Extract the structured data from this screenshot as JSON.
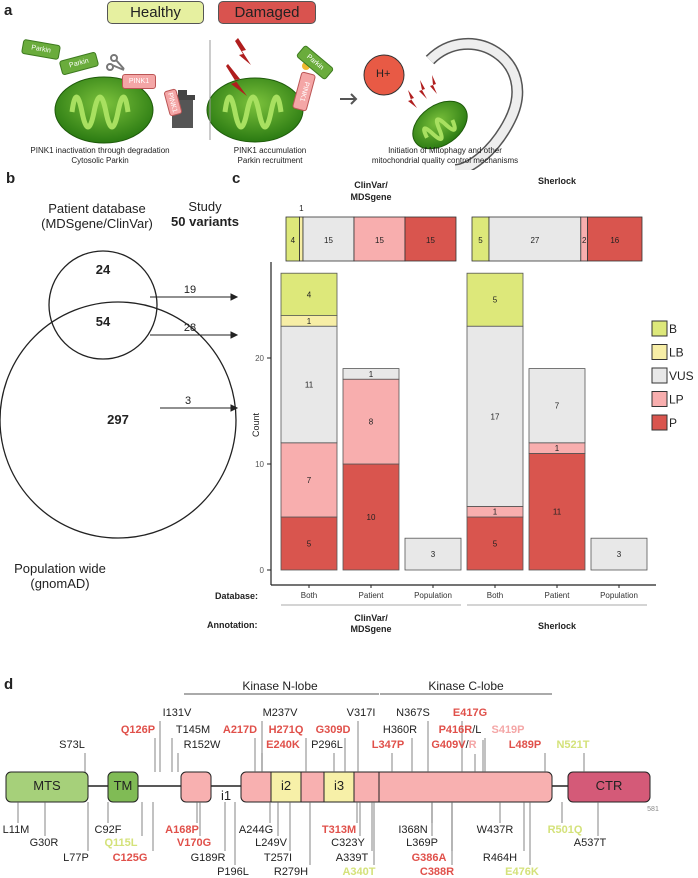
{
  "panel_labels": {
    "a": "a",
    "b": "b",
    "c": "c",
    "d": "d"
  },
  "panel_a": {
    "healthy_label": "Healthy",
    "damaged_label": "Damaged",
    "parkin": "Parkin",
    "pink1": "PINK1",
    "h_plus": "H+",
    "caption_left": [
      "PINK1 inactivation through degradation",
      "Cytosolic Parkin"
    ],
    "caption_mid": [
      "PINK1 accumulation",
      "Parkin recruitment"
    ],
    "caption_right": [
      "Initiation of Mitophagy and other",
      "mitochondrial quality control mechanisms"
    ],
    "colors": {
      "healthy": "#e6f0a0",
      "damaged": "#d9534f",
      "mito": "#3f9a1e",
      "parkin": "#6aac3c",
      "pink1": "#f4a6a6"
    }
  },
  "panel_b": {
    "patient_db": [
      "Patient database",
      "(MDSgene/ClinVar)"
    ],
    "population": [
      "Population wide",
      "(gnomAD)"
    ],
    "study": "Study",
    "study_count": "50 variants",
    "patient_only": "24",
    "both": "54",
    "population_only": "297",
    "arrows": [
      "19",
      "28",
      "3"
    ]
  },
  "chart_data": {
    "type": "bar",
    "stacked": true,
    "ylabel": "Count",
    "yticks": [
      "0",
      "10",
      "20"
    ],
    "ylim": [
      0,
      28
    ],
    "legend": {
      "position": "right",
      "entries": [
        "B",
        "LB",
        "VUS",
        "LP",
        "P"
      ]
    },
    "colors": {
      "B": "#dde87a",
      "LB": "#f7eea6",
      "VUS": "#e8e8e8",
      "LP": "#f8aeae",
      "P": "#d9554e"
    },
    "row_labels": {
      "database": "Database:",
      "annotation": "Annotation:"
    },
    "groups": [
      {
        "annotation": "ClinVar/ MDSgene",
        "annotation_lines": [
          "ClinVar/",
          "MDSgene"
        ],
        "summary": {
          "B": 4,
          "LB": 1,
          "VUS": 15,
          "LP": 15,
          "P": 15
        },
        "bars": [
          {
            "database": "Both",
            "values": {
              "P": 5,
              "LP": 7,
              "VUS": 11,
              "LB": 1,
              "B": 4
            }
          },
          {
            "database": "Patient",
            "values": {
              "P": 10,
              "LP": 8,
              "VUS": 1
            }
          },
          {
            "database": "Population",
            "values": {
              "VUS": 3
            }
          }
        ]
      },
      {
        "annotation": "Sherlock",
        "annotation_lines": [
          "Sherlock"
        ],
        "summary": {
          "B": 5,
          "LB": 0,
          "VUS": 27,
          "LP": 2,
          "P": 16
        },
        "bars": [
          {
            "database": "Both",
            "values": {
              "P": 5,
              "LP": 1,
              "VUS": 17,
              "B": 5
            }
          },
          {
            "database": "Patient",
            "values": {
              "P": 11,
              "LP": 1,
              "VUS": 7
            }
          },
          {
            "database": "Population",
            "values": {
              "VUS": 3
            }
          }
        ]
      }
    ]
  },
  "panel_d": {
    "lobes": [
      "Kinase N-lobe",
      "Kinase C-lobe"
    ],
    "domains": {
      "mts": "MTS",
      "tm": "TM",
      "i1": "i1",
      "i2": "i2",
      "i3": "i3",
      "ctr": "CTR"
    },
    "length": "581",
    "colors": {
      "P": "#e0504a",
      "LP": "#f4a6a6",
      "B": "#d4e27a",
      "VUS": "#222222"
    },
    "variants_above": [
      {
        "label": "S73L",
        "cls": "VUS"
      },
      {
        "label": "Q126P",
        "cls": "P"
      },
      {
        "label": "I131V",
        "cls": "VUS"
      },
      {
        "label": "T145M",
        "cls": "VUS"
      },
      {
        "label": "R152W",
        "cls": "VUS"
      },
      {
        "label": "A217D",
        "cls": "P"
      },
      {
        "label": "M237V",
        "cls": "VUS"
      },
      {
        "label": "H271Q",
        "cls": "P"
      },
      {
        "label": "E240K",
        "cls": "P"
      },
      {
        "label": "G309D",
        "cls": "P"
      },
      {
        "label": "P296L",
        "cls": "VUS"
      },
      {
        "label": "V317I",
        "cls": "VUS"
      },
      {
        "label": "N367S",
        "cls": "VUS"
      },
      {
        "label": "H360R",
        "cls": "VUS"
      },
      {
        "label": "L347P",
        "cls": "P"
      },
      {
        "label": "E417G",
        "cls": "P"
      },
      {
        "label": "S419P",
        "cls": "LP"
      },
      {
        "label": "L489P",
        "cls": "P"
      },
      {
        "label": "N521T",
        "cls": "B"
      }
    ],
    "variant_p416": {
      "main": "P416R",
      "sep": "/L"
    },
    "variant_g409": {
      "main": "G409V",
      "sep": "/",
      "alt": "R"
    },
    "variants_below": [
      {
        "label": "L11M",
        "cls": "VUS"
      },
      {
        "label": "G30R",
        "cls": "VUS"
      },
      {
        "label": "L77P",
        "cls": "VUS"
      },
      {
        "label": "C92F",
        "cls": "VUS"
      },
      {
        "label": "Q115L",
        "cls": "B"
      },
      {
        "label": "C125G",
        "cls": "P"
      },
      {
        "label": "A168P",
        "cls": "P"
      },
      {
        "label": "V170G",
        "cls": "P"
      },
      {
        "label": "G189R",
        "cls": "VUS"
      },
      {
        "label": "P196L",
        "cls": "VUS"
      },
      {
        "label": "A244G",
        "cls": "VUS"
      },
      {
        "label": "L249V",
        "cls": "VUS"
      },
      {
        "label": "T257I",
        "cls": "VUS"
      },
      {
        "label": "R279H",
        "cls": "VUS"
      },
      {
        "label": "T313M",
        "cls": "P"
      },
      {
        "label": "C323Y",
        "cls": "VUS"
      },
      {
        "label": "A339T",
        "cls": "VUS"
      },
      {
        "label": "A340T",
        "cls": "B"
      },
      {
        "label": "I368N",
        "cls": "VUS"
      },
      {
        "label": "L369P",
        "cls": "VUS"
      },
      {
        "label": "G386A",
        "cls": "P"
      },
      {
        "label": "C388R",
        "cls": "P"
      },
      {
        "label": "W437R",
        "cls": "VUS"
      },
      {
        "label": "R464H",
        "cls": "VUS"
      },
      {
        "label": "E476K",
        "cls": "B"
      },
      {
        "label": "R501Q",
        "cls": "B"
      },
      {
        "label": "A537T",
        "cls": "VUS"
      }
    ]
  }
}
